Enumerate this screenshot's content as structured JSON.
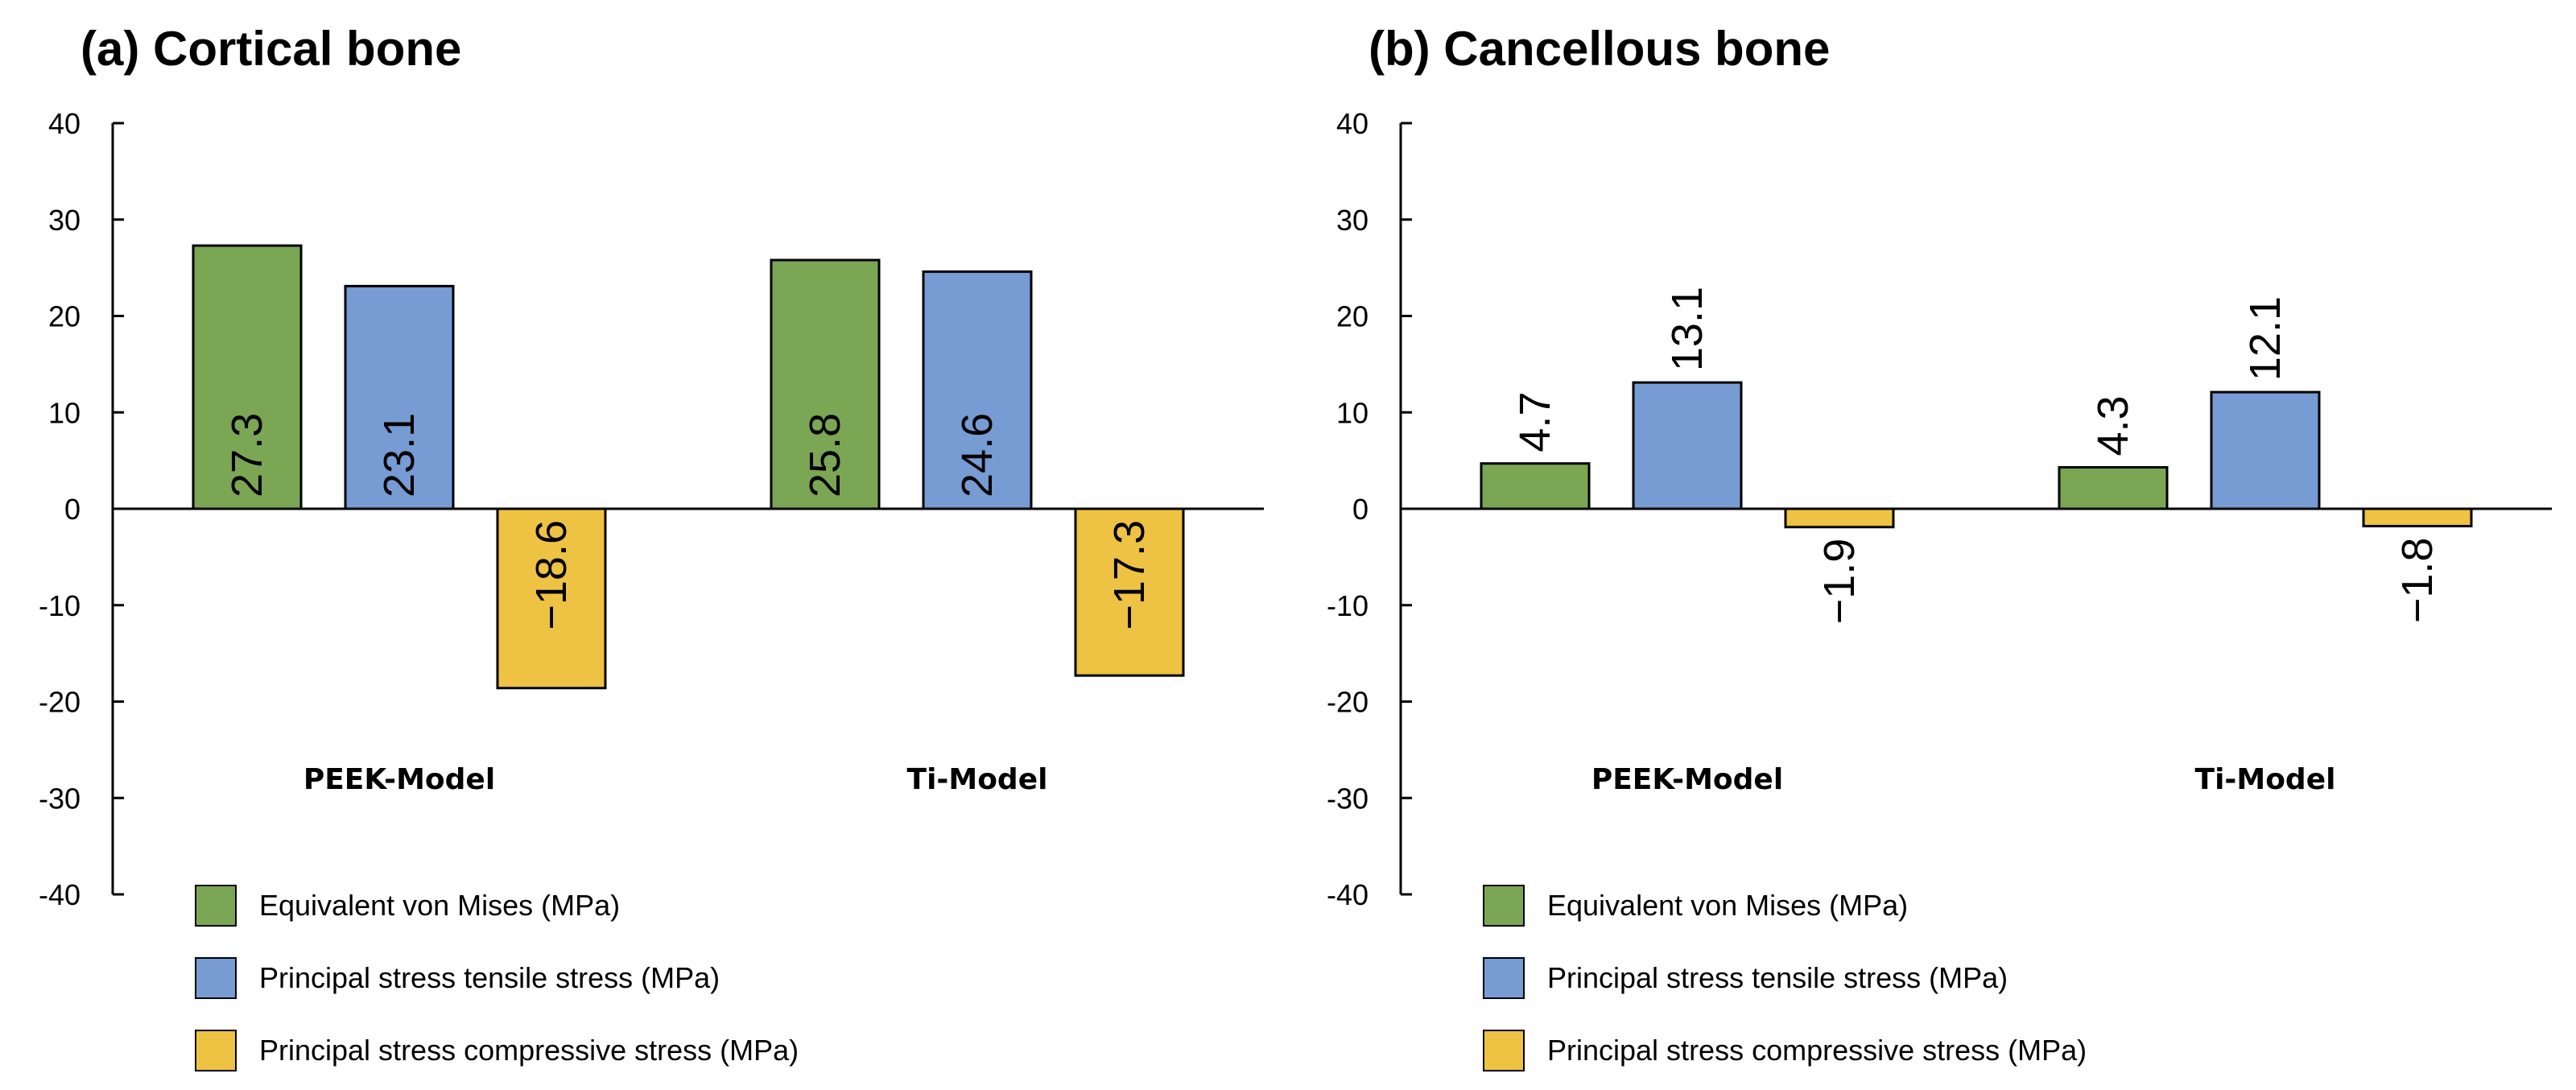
{
  "chart_data": [
    {
      "type": "bar",
      "title": "(a) Cortical bone",
      "categories": [
        "PEEK-Model",
        "Ti-Model"
      ],
      "series": [
        {
          "name": "Equivalent von Mises (MPa)",
          "values": [
            27.3,
            25.8
          ],
          "labels": [
            "27.3",
            "25.8"
          ]
        },
        {
          "name": "Principal stress tensile stress (MPa)",
          "values": [
            23.1,
            24.6
          ],
          "labels": [
            "23.1",
            "24.6"
          ]
        },
        {
          "name": "Principal stress compressive stress (MPa)",
          "values": [
            -18.6,
            -17.3
          ],
          "labels": [
            "−18.6",
            "−17.3"
          ]
        }
      ],
      "ylim": [
        -40,
        40
      ],
      "yticks": [
        "40",
        "30",
        "20",
        "10",
        "0",
        "-10",
        "-20",
        "-30",
        "-40"
      ],
      "data_label_position": "inside",
      "grid": false,
      "legend": "bottom-left"
    },
    {
      "type": "bar",
      "title": "(b) Cancellous bone",
      "categories": [
        "PEEK-Model",
        "Ti-Model"
      ],
      "series": [
        {
          "name": "Equivalent von Mises (MPa)",
          "values": [
            4.7,
            4.3
          ],
          "labels": [
            "4.7",
            "4.3"
          ]
        },
        {
          "name": "Principal stress tensile stress (MPa)",
          "values": [
            13.1,
            12.1
          ],
          "labels": [
            "13.1",
            "12.1"
          ]
        },
        {
          "name": "Principal stress compressive stress (MPa)",
          "values": [
            -1.9,
            -1.8
          ],
          "labels": [
            "−1.9",
            "−1.8"
          ]
        }
      ],
      "ylim": [
        -40,
        40
      ],
      "yticks": [
        "40",
        "30",
        "20",
        "10",
        "0",
        "-10",
        "-20",
        "-30",
        "-40"
      ],
      "data_label_position": "outside",
      "grid": false,
      "legend": "bottom-left"
    }
  ],
  "colors": {
    "von_mises": "#7ba653",
    "tensile": "#779bd3",
    "compressive": "#eec242",
    "axis": "#000000"
  }
}
